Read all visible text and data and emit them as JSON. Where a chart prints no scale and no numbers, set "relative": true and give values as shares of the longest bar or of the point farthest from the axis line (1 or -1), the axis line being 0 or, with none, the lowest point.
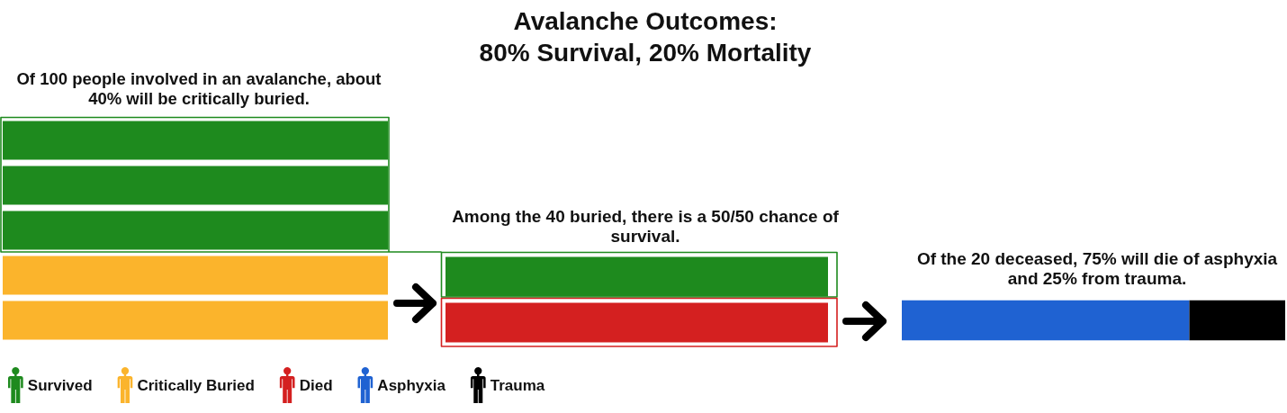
{
  "chart_data": [
    {
      "type": "bar",
      "orientation": "horizontal",
      "stacked": true,
      "relative": true,
      "title": "Of 100 people involved in an avalanche, about\n40% will be critically buried.",
      "categories": [
        null,
        null,
        null,
        null,
        null
      ],
      "series": [
        {
          "name": "Survived",
          "color": "#1e8a1e",
          "values": [
            1,
            1,
            1,
            null,
            null
          ]
        },
        {
          "name": "Critically Buried",
          "color": "#fbb42c",
          "values": [
            null,
            null,
            null,
            1,
            1
          ]
        }
      ],
      "legend": "bottom left"
    },
    {
      "type": "bar",
      "orientation": "horizontal",
      "stacked": true,
      "relative": true,
      "title": "Avalanche Outcomes:\n80% Survival, 20% Mortality",
      "subtitle": "Among the 40 buried, there is a 50/50 chance of\nsurvival.",
      "categories": [
        null,
        null
      ],
      "series": [
        {
          "name": "Survived",
          "color": "#1e8a1e",
          "values": [
            1,
            null
          ]
        },
        {
          "name": "Died",
          "color": "#d42020",
          "values": [
            null,
            1
          ]
        }
      ],
      "legend": "bottom left"
    },
    {
      "type": "bar",
      "orientation": "horizontal",
      "stacked": true,
      "relative": true,
      "title": "Of the 20 deceased, 75% will die of asphyxia\nand 25% from trauma.",
      "categories": [
        null
      ],
      "series": [
        {
          "name": "Asphyxia",
          "color": "#1f62d2",
          "values": [
            0.75
          ]
        },
        {
          "name": "Trauma",
          "color": "#000000",
          "values": [
            0.25
          ]
        }
      ],
      "legend": "bottom left"
    }
  ]
}
